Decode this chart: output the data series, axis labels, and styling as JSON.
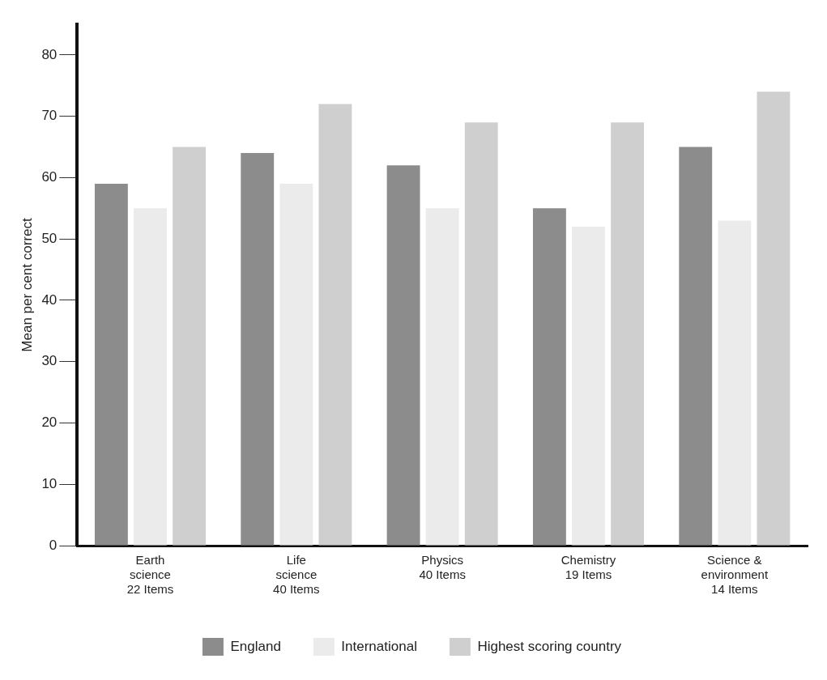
{
  "chart_data": {
    "type": "bar",
    "ylabel": "Mean per cent correct",
    "categories": [
      "Earth\nscience\n22 Items",
      "Life\nscience\n40 Items",
      "Physics\n40 Items",
      "Chemistry\n19 Items",
      "Science &\nenvironment\n14 Items"
    ],
    "series": [
      {
        "name": "England",
        "color": "#8c8c8c",
        "values": [
          59,
          64,
          62,
          55,
          65
        ]
      },
      {
        "name": "International",
        "color": "#ebebeb",
        "values": [
          55,
          59,
          55,
          52,
          53
        ]
      },
      {
        "name": "Highest scoring country",
        "color": "#cfcfcf",
        "values": [
          65,
          72,
          69,
          69,
          74
        ]
      }
    ],
    "ylim": [
      0,
      85
    ],
    "yticks": [
      0,
      10,
      20,
      30,
      40,
      50,
      60,
      70,
      80
    ],
    "grid": false,
    "legend": "bottom"
  }
}
